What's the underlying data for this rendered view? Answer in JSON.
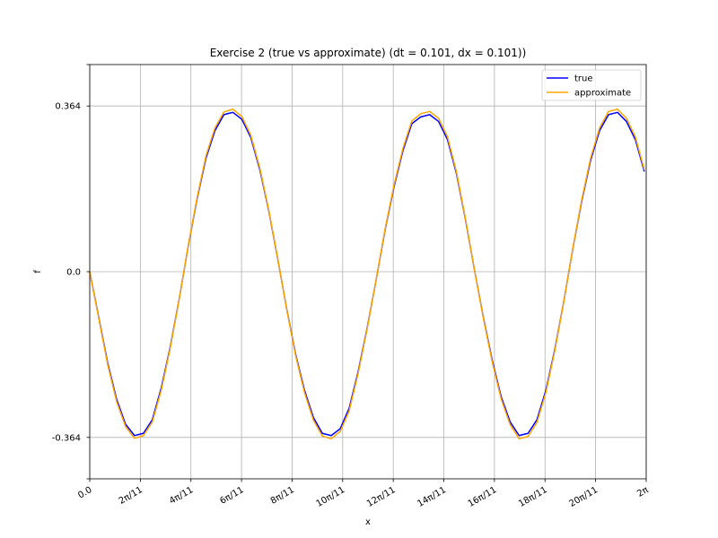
{
  "chart_data": {
    "type": "line",
    "title": "Exercise 2 (true vs approximate) (dt = 0.101, dx = 0.101))",
    "xlabel": "x",
    "ylabel": "f",
    "xlim": [
      0,
      6.283185307
    ],
    "ylim": [
      -0.455,
      0.455
    ],
    "grid": true,
    "legend_position": "top-right",
    "x_ticks": [
      {
        "value": 0.0,
        "label": "0.0"
      },
      {
        "value": 0.571199,
        "label": "2π/11"
      },
      {
        "value": 1.142397,
        "label": "4π/11"
      },
      {
        "value": 1.713596,
        "label": "6π/11"
      },
      {
        "value": 2.284795,
        "label": "8π/11"
      },
      {
        "value": 2.855993,
        "label": "10π/11"
      },
      {
        "value": 3.427192,
        "label": "12π/11"
      },
      {
        "value": 3.998391,
        "label": "14π/11"
      },
      {
        "value": 4.569589,
        "label": "16π/11"
      },
      {
        "value": 5.140788,
        "label": "18π/11"
      },
      {
        "value": 5.711987,
        "label": "20π/11"
      },
      {
        "value": 6.283185,
        "label": "2π"
      }
    ],
    "y_ticks": [
      {
        "value": -0.364,
        "label": "-0.364"
      },
      {
        "value": 0.0,
        "label": "0.0"
      },
      {
        "value": 0.364,
        "label": "0.364"
      }
    ],
    "series": [
      {
        "name": "true",
        "color": "#0000ff",
        "x": [
          0,
          0.101,
          0.202,
          0.303,
          0.404,
          0.505,
          0.606,
          0.707,
          0.808,
          0.909,
          1.01,
          1.111,
          1.212,
          1.313,
          1.414,
          1.515,
          1.616,
          1.717,
          1.818,
          1.919,
          2.02,
          2.121,
          2.222,
          2.323,
          2.424,
          2.525,
          2.626,
          2.727,
          2.828,
          2.929,
          3.03,
          3.131,
          3.232,
          3.333,
          3.434,
          3.535,
          3.636,
          3.737,
          3.838,
          3.939,
          4.04,
          4.141,
          4.242,
          4.343,
          4.444,
          4.545,
          4.646,
          4.747,
          4.848,
          4.949,
          5.05,
          5.151,
          5.252,
          5.353,
          5.454,
          5.555,
          5.656,
          5.757,
          5.858,
          5.959,
          6.06,
          6.161,
          6.262
        ],
        "y": [
          0.0,
          -0.1,
          -0.2,
          -0.28,
          -0.335,
          -0.36,
          -0.355,
          -0.325,
          -0.255,
          -0.165,
          -0.06,
          0.055,
          0.16,
          0.25,
          0.31,
          0.345,
          0.35,
          0.335,
          0.295,
          0.225,
          0.135,
          0.03,
          -0.08,
          -0.18,
          -0.26,
          -0.32,
          -0.355,
          -0.36,
          -0.345,
          -0.3,
          -0.22,
          -0.125,
          -0.02,
          0.09,
          0.185,
          0.265,
          0.325,
          0.34,
          0.345,
          0.33,
          0.29,
          0.215,
          0.115,
          0.005,
          -0.1,
          -0.195,
          -0.275,
          -0.33,
          -0.36,
          -0.355,
          -0.325,
          -0.26,
          -0.17,
          -0.065,
          0.05,
          0.155,
          0.245,
          0.31,
          0.345,
          0.35,
          0.33,
          0.29,
          0.22
        ]
      },
      {
        "name": "approximate",
        "color": "#ffa500",
        "x": [
          0,
          0.101,
          0.202,
          0.303,
          0.404,
          0.505,
          0.606,
          0.707,
          0.808,
          0.909,
          1.01,
          1.111,
          1.212,
          1.313,
          1.414,
          1.515,
          1.616,
          1.717,
          1.818,
          1.919,
          2.02,
          2.121,
          2.222,
          2.323,
          2.424,
          2.525,
          2.626,
          2.727,
          2.828,
          2.929,
          3.03,
          3.131,
          3.232,
          3.333,
          3.434,
          3.535,
          3.636,
          3.737,
          3.838,
          3.939,
          4.04,
          4.141,
          4.242,
          4.343,
          4.444,
          4.545,
          4.646,
          4.747,
          4.848,
          4.949,
          5.05,
          5.151,
          5.252,
          5.353,
          5.454,
          5.555,
          5.656,
          5.757,
          5.858,
          5.959,
          6.06,
          6.161,
          6.262
        ],
        "y": [
          0.0,
          -0.102,
          -0.204,
          -0.285,
          -0.34,
          -0.366,
          -0.36,
          -0.33,
          -0.26,
          -0.168,
          -0.061,
          0.056,
          0.163,
          0.255,
          0.316,
          0.351,
          0.357,
          0.341,
          0.3,
          0.229,
          0.137,
          0.031,
          -0.081,
          -0.183,
          -0.265,
          -0.326,
          -0.361,
          -0.367,
          -0.351,
          -0.306,
          -0.224,
          -0.127,
          -0.02,
          0.092,
          0.189,
          0.27,
          0.331,
          0.347,
          0.352,
          0.337,
          0.296,
          0.219,
          0.117,
          0.005,
          -0.102,
          -0.199,
          -0.28,
          -0.336,
          -0.367,
          -0.362,
          -0.331,
          -0.265,
          -0.173,
          -0.066,
          0.051,
          0.158,
          0.25,
          0.316,
          0.352,
          0.357,
          0.337,
          0.296,
          0.224
        ]
      }
    ]
  }
}
